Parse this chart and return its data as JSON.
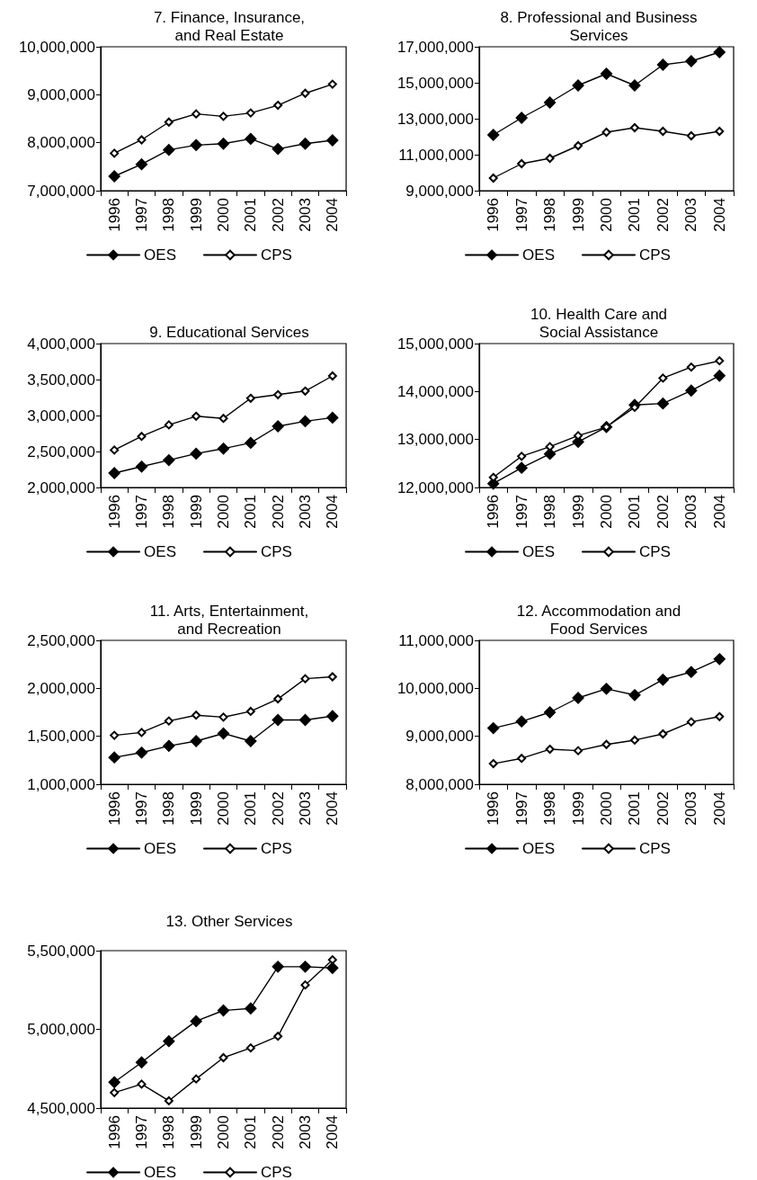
{
  "chart_data": [
    {
      "type": "line",
      "title": "7. Finance, Insurance,\nand Real Estate",
      "categories": [
        "1996",
        "1997",
        "1998",
        "1999",
        "2000",
        "2001",
        "2002",
        "2003",
        "2004"
      ],
      "ylim": [
        7000000,
        10000000
      ],
      "yticks": [
        {
          "value": 7000000,
          "label": "7,000,000"
        },
        {
          "value": 8000000,
          "label": "8,000,000"
        },
        {
          "value": 9000000,
          "label": "9,000,000"
        },
        {
          "value": 10000000,
          "label": "10,000,000"
        }
      ],
      "grid": false,
      "legend": "bottom",
      "marker": "diamond",
      "line_style": "solid",
      "series": [
        {
          "name": "OES",
          "color": "#000000",
          "values": [
            7300000,
            7550000,
            7850000,
            7950000,
            7980000,
            8080000,
            7870000,
            7980000,
            8050000
          ]
        },
        {
          "name": "CPS",
          "color": "#000000",
          "values": [
            7780000,
            8060000,
            8430000,
            8600000,
            8550000,
            8620000,
            8780000,
            9030000,
            9220000
          ]
        }
      ]
    },
    {
      "type": "line",
      "title": "8. Professional and Business\nServices",
      "categories": [
        "1996",
        "1997",
        "1998",
        "1999",
        "2000",
        "2001",
        "2002",
        "2003",
        "2004"
      ],
      "ylim": [
        9000000,
        17000000
      ],
      "yticks": [
        {
          "value": 9000000,
          "label": "9,000,000"
        },
        {
          "value": 11000000,
          "label": "11,000,000"
        },
        {
          "value": 13000000,
          "label": "13,000,000"
        },
        {
          "value": 15000000,
          "label": "15,000,000"
        },
        {
          "value": 17000000,
          "label": "17,000,000"
        }
      ],
      "grid": false,
      "legend": "bottom",
      "marker": "diamond",
      "line_style": "solid",
      "series": [
        {
          "name": "OES",
          "color": "#000000",
          "values": [
            12100000,
            13050000,
            13900000,
            14850000,
            15500000,
            14850000,
            16000000,
            16200000,
            16700000
          ]
        },
        {
          "name": "CPS",
          "color": "#000000",
          "values": [
            9700000,
            10500000,
            10800000,
            11500000,
            12250000,
            12500000,
            12300000,
            12050000,
            12300000
          ]
        }
      ]
    },
    {
      "type": "line",
      "title": "9. Educational Services",
      "categories": [
        "1996",
        "1997",
        "1998",
        "1999",
        "2000",
        "2001",
        "2002",
        "2003",
        "2004"
      ],
      "ylim": [
        2000000,
        4000000
      ],
      "yticks": [
        {
          "value": 2000000,
          "label": "2,000,000"
        },
        {
          "value": 2500000,
          "label": "2,500,000"
        },
        {
          "value": 3000000,
          "label": "3,000,000"
        },
        {
          "value": 3500000,
          "label": "3,500,000"
        },
        {
          "value": 4000000,
          "label": "4,000,000"
        }
      ],
      "grid": false,
      "legend": "bottom",
      "marker": "diamond",
      "line_style": "solid",
      "series": [
        {
          "name": "OES",
          "color": "#000000",
          "values": [
            2200000,
            2290000,
            2380000,
            2470000,
            2540000,
            2620000,
            2850000,
            2920000,
            2970000
          ]
        },
        {
          "name": "CPS",
          "color": "#000000",
          "values": [
            2520000,
            2710000,
            2870000,
            2990000,
            2960000,
            3240000,
            3290000,
            3340000,
            3550000
          ]
        }
      ]
    },
    {
      "type": "line",
      "title": "10. Health Care and\nSocial Assistance",
      "categories": [
        "1996",
        "1997",
        "1998",
        "1999",
        "2000",
        "2001",
        "2002",
        "2003",
        "2004"
      ],
      "ylim": [
        12000000,
        15000000
      ],
      "yticks": [
        {
          "value": 12000000,
          "label": "12,000,000"
        },
        {
          "value": 13000000,
          "label": "13,000,000"
        },
        {
          "value": 14000000,
          "label": "14,000,000"
        },
        {
          "value": 15000000,
          "label": "15,000,000"
        }
      ],
      "grid": false,
      "legend": "bottom",
      "marker": "diamond",
      "line_style": "solid",
      "series": [
        {
          "name": "OES",
          "color": "#000000",
          "values": [
            12080000,
            12410000,
            12700000,
            12950000,
            13260000,
            13720000,
            13750000,
            14020000,
            14330000
          ]
        },
        {
          "name": "CPS",
          "color": "#000000",
          "values": [
            12210000,
            12650000,
            12850000,
            13080000,
            13260000,
            13670000,
            14280000,
            14510000,
            14640000
          ]
        }
      ]
    },
    {
      "type": "line",
      "title": "11. Arts, Entertainment,\nand Recreation",
      "categories": [
        "1996",
        "1997",
        "1998",
        "1999",
        "2000",
        "2001",
        "2002",
        "2003",
        "2004"
      ],
      "ylim": [
        1000000,
        2500000
      ],
      "yticks": [
        {
          "value": 1000000,
          "label": "1,000,000"
        },
        {
          "value": 1500000,
          "label": "1,500,000"
        },
        {
          "value": 2000000,
          "label": "2,000,000"
        },
        {
          "value": 2500000,
          "label": "2,500,000"
        }
      ],
      "grid": false,
      "legend": "bottom",
      "marker": "diamond",
      "line_style": "solid",
      "series": [
        {
          "name": "OES",
          "color": "#000000",
          "values": [
            1280000,
            1330000,
            1400000,
            1450000,
            1530000,
            1450000,
            1670000,
            1670000,
            1710000
          ]
        },
        {
          "name": "CPS",
          "color": "#000000",
          "values": [
            1510000,
            1540000,
            1660000,
            1720000,
            1700000,
            1760000,
            1890000,
            2100000,
            2120000
          ]
        }
      ]
    },
    {
      "type": "line",
      "title": "12. Accommodation and\nFood Services",
      "categories": [
        "1996",
        "1997",
        "1998",
        "1999",
        "2000",
        "2001",
        "2002",
        "2003",
        "2004"
      ],
      "ylim": [
        8000000,
        11000000
      ],
      "yticks": [
        {
          "value": 8000000,
          "label": "8,000,000"
        },
        {
          "value": 9000000,
          "label": "9,000,000"
        },
        {
          "value": 10000000,
          "label": "10,000,000"
        },
        {
          "value": 11000000,
          "label": "11,000,000"
        }
      ],
      "grid": false,
      "legend": "bottom",
      "marker": "diamond",
      "line_style": "solid",
      "series": [
        {
          "name": "OES",
          "color": "#000000",
          "values": [
            9170000,
            9310000,
            9500000,
            9800000,
            9990000,
            9860000,
            10180000,
            10340000,
            10610000
          ]
        },
        {
          "name": "CPS",
          "color": "#000000",
          "values": [
            8430000,
            8540000,
            8730000,
            8700000,
            8830000,
            8920000,
            9050000,
            9300000,
            9410000
          ]
        }
      ]
    },
    {
      "type": "line",
      "title": "13. Other Services",
      "categories": [
        "1996",
        "1997",
        "1998",
        "1999",
        "2000",
        "2001",
        "2002",
        "2003",
        "2004"
      ],
      "ylim": [
        4500000,
        5500000
      ],
      "yticks": [
        {
          "value": 4500000,
          "label": "4,500,000"
        },
        {
          "value": 5000000,
          "label": "5,000,000"
        },
        {
          "value": 5500000,
          "label": "5,500,000"
        }
      ],
      "grid": false,
      "legend": "bottom",
      "marker": "diamond",
      "line_style": "solid",
      "series": [
        {
          "name": "OES",
          "color": "#000000",
          "values": [
            4664000,
            4790000,
            4925000,
            5052000,
            5120000,
            5133000,
            5398000,
            5398000,
            5390000
          ]
        },
        {
          "name": "CPS",
          "color": "#000000",
          "values": [
            4598000,
            4652000,
            4546000,
            4685000,
            4820000,
            4882000,
            4956000,
            5282000,
            5442000
          ]
        }
      ]
    }
  ]
}
